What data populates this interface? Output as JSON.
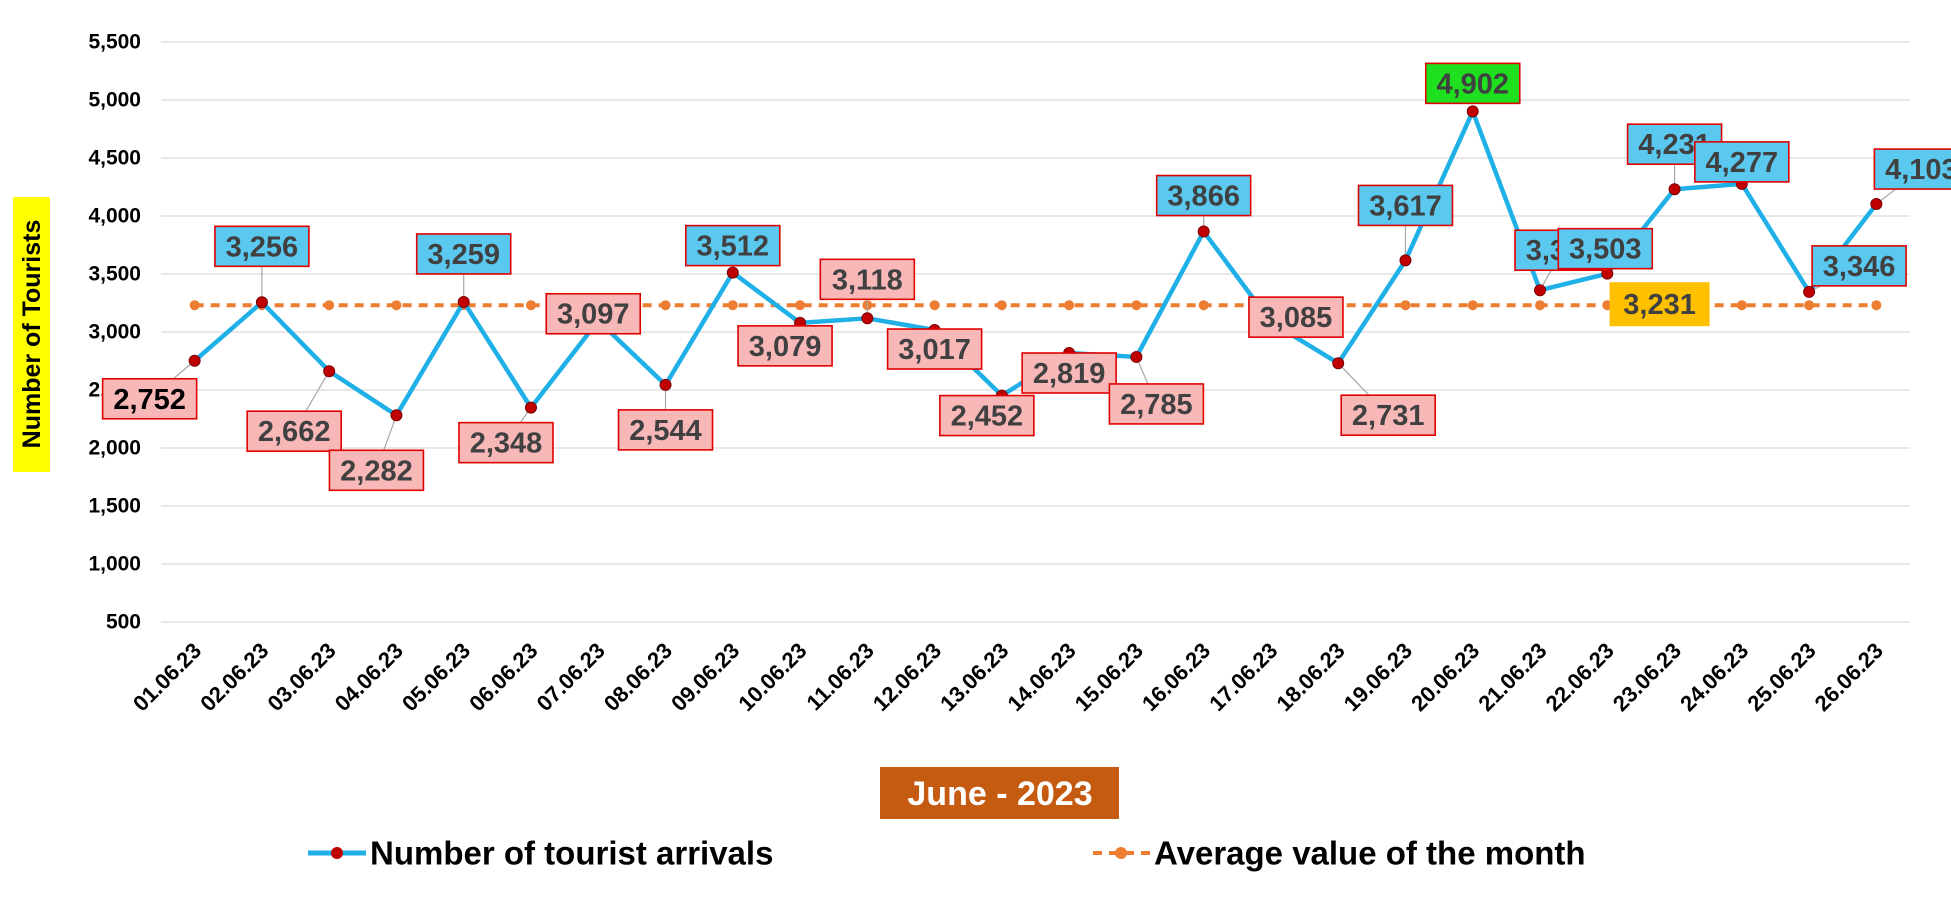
{
  "chart_data": {
    "type": "line",
    "title": "",
    "xlabel": "June - 2023",
    "ylabel": "Number of Tourists",
    "ylim": [
      500,
      5500
    ],
    "yticks": [
      "5,500",
      "5,000",
      "4,500",
      "4,000",
      "3,500",
      "3,000",
      "2,500",
      "2,000",
      "1,500",
      "1,000",
      "500"
    ],
    "grid": true,
    "legend": "bottom",
    "categories": [
      "01.06.23",
      "02.06.23",
      "03.06.23",
      "04.06.23",
      "05.06.23",
      "06.06.23",
      "07.06.23",
      "08.06.23",
      "09.06.23",
      "10.06.23",
      "11.06.23",
      "12.06.23",
      "13.06.23",
      "14.06.23",
      "15.06.23",
      "16.06.23",
      "17.06.23",
      "18.06.23",
      "19.06.23",
      "20.06.23",
      "21.06.23",
      "22.06.23",
      "23.06.23",
      "24.06.23",
      "25.06.23",
      "26.06.23"
    ],
    "series": [
      {
        "name": "Number of tourist arrivals",
        "color": "#1EB0E6",
        "values": [
          2752,
          3256,
          2662,
          2282,
          3259,
          2348,
          3097,
          2544,
          3512,
          3079,
          3118,
          3017,
          2452,
          2819,
          2785,
          3866,
          3085,
          2731,
          3617,
          4902,
          3360,
          3503,
          4231,
          4277,
          3346,
          4103
        ],
        "labels": [
          "2,752",
          "3,256",
          "2,662",
          "2,282",
          "3,259",
          "2,348",
          "3,097",
          "2,544",
          "3,512",
          "3,079",
          "3,118",
          "3,017",
          "2,452",
          "2,819",
          "2,785",
          "3,866",
          "3,085",
          "2,731",
          "3,617",
          "4,902",
          "3,360",
          "3,503",
          "4,231",
          "4,277",
          "3,346",
          "4,103"
        ]
      },
      {
        "name": "Average value of the month",
        "color": "#ED7D31",
        "values": [
          3231,
          3231,
          3231,
          3231,
          3231,
          3231,
          3231,
          3231,
          3231,
          3231,
          3231,
          3231,
          3231,
          3231,
          3231,
          3231,
          3231,
          3231,
          3231,
          3231,
          3231,
          3231,
          3231,
          3231,
          3231,
          3231
        ],
        "label": "3,231"
      }
    ],
    "colors": {
      "above_average_box": "#5BC8EF",
      "below_average_box": "#F8B8B8",
      "max_box": "#1EE01E",
      "average_box": "#FFC000",
      "box_border": "#E00000",
      "xlabel_box": "#C55A11",
      "ylabel_box": "#FFFF00"
    }
  }
}
